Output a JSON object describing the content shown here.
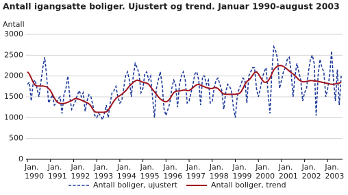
{
  "chart_data": {
    "type": "line",
    "title": "Antall igangsatte boliger. Ujustert og trend. Januar 1990-august 2003",
    "y_label": "Antall",
    "categories": [
      "Jan. 1990",
      null,
      null,
      null,
      null,
      null,
      null,
      null,
      null,
      null,
      null,
      null,
      "Jan. 1991",
      null,
      null,
      null,
      null,
      null,
      null,
      null,
      null,
      null,
      null,
      null,
      "Jan. 1992",
      null,
      null,
      null,
      null,
      null,
      null,
      null,
      null,
      null,
      null,
      null,
      "Jan. 1993",
      null,
      null,
      null,
      null,
      null,
      null,
      null,
      null,
      null,
      null,
      null,
      "Jan. 1994",
      null,
      null,
      null,
      null,
      null,
      null,
      null,
      null,
      null,
      null,
      null,
      "Jan. 1995",
      null,
      null,
      null,
      null,
      null,
      null,
      null,
      null,
      null,
      null,
      null,
      "Jan. 1996",
      null,
      null,
      null,
      null,
      null,
      null,
      null,
      null,
      null,
      null,
      null,
      "Jan. 1997",
      null,
      null,
      null,
      null,
      null,
      null,
      null,
      null,
      null,
      null,
      null,
      "Jan. 1998",
      null,
      null,
      null,
      null,
      null,
      null,
      null,
      null,
      null,
      null,
      null,
      "Jan. 1999",
      null,
      null,
      null,
      null,
      null,
      null,
      null,
      null,
      null,
      null,
      null,
      "Jan. 2000",
      null,
      null,
      null,
      null,
      null,
      null,
      null,
      null,
      null,
      null,
      null,
      "Jan. 2001",
      null,
      null,
      null,
      null,
      null,
      null,
      null,
      null,
      null,
      null,
      null,
      "Jan. 2002",
      null,
      null,
      null,
      null,
      null,
      null,
      null,
      null,
      null,
      null,
      null,
      "Jan. 2003",
      null,
      null,
      null,
      null,
      null,
      null,
      null
    ],
    "series": [
      {
        "name": "Antall boliger, ujustert",
        "color": "#1f3b9b",
        "dash": true,
        "values": [
          1800,
          1850,
          1400,
          1850,
          1900,
          1700,
          1500,
          1850,
          2200,
          2450,
          2000,
          1350,
          1450,
          1550,
          1300,
          1350,
          1450,
          1500,
          1100,
          1550,
          1700,
          2000,
          1500,
          1200,
          1300,
          1400,
          1550,
          1650,
          1500,
          1600,
          1150,
          1400,
          1550,
          1500,
          1300,
          1050,
          1000,
          1100,
          1050,
          950,
          1100,
          1300,
          1000,
          1350,
          1600,
          1650,
          1750,
          1500,
          1350,
          1400,
          1700,
          2000,
          2100,
          1900,
          1500,
          2000,
          2300,
          2200,
          2050,
          1600,
          1700,
          2050,
          2100,
          1900,
          2000,
          1500,
          1000,
          1700,
          1900,
          2100,
          1800,
          1200,
          1050,
          1200,
          1350,
          1700,
          1900,
          1800,
          1250,
          1800,
          2000,
          2100,
          1900,
          1350,
          1400,
          1600,
          1800,
          2050,
          2100,
          1900,
          1300,
          2000,
          2000,
          1800,
          1900,
          1350,
          1400,
          1700,
          1900,
          1950,
          1800,
          1650,
          1200,
          1600,
          1800,
          1750,
          1650,
          1250,
          1000,
          1500,
          1700,
          1800,
          1950,
          1900,
          1350,
          2000,
          2100,
          2200,
          2200,
          1700,
          1500,
          1700,
          1950,
          2100,
          2200,
          1600,
          1100,
          2100,
          2700,
          2600,
          2400,
          1700,
          1900,
          2100,
          2200,
          2400,
          2450,
          2100,
          1500,
          2000,
          2300,
          2100,
          1900,
          1400,
          1600,
          1700,
          2100,
          2400,
          2500,
          2300,
          1050,
          2000,
          2400,
          2200,
          2100,
          1500,
          1700,
          2000,
          2600,
          1900,
          1400,
          2150,
          1300,
          2000
        ]
      },
      {
        "name": "Antall boliger, trend",
        "color": "#a0141e",
        "dash": false,
        "values": [
          2100,
          2050,
          1950,
          1850,
          1780,
          1760,
          1760,
          1760,
          1760,
          1750,
          1740,
          1700,
          1650,
          1560,
          1470,
          1400,
          1360,
          1340,
          1340,
          1340,
          1350,
          1370,
          1390,
          1410,
          1440,
          1460,
          1450,
          1440,
          1420,
          1400,
          1380,
          1360,
          1330,
          1280,
          1200,
          1140,
          1130,
          1130,
          1130,
          1130,
          1130,
          1140,
          1180,
          1250,
          1330,
          1400,
          1460,
          1500,
          1530,
          1560,
          1600,
          1640,
          1700,
          1760,
          1800,
          1850,
          1880,
          1900,
          1890,
          1870,
          1850,
          1840,
          1830,
          1800,
          1740,
          1680,
          1620,
          1560,
          1500,
          1450,
          1420,
          1390,
          1380,
          1400,
          1450,
          1530,
          1600,
          1630,
          1640,
          1640,
          1650,
          1660,
          1660,
          1650,
          1650,
          1680,
          1720,
          1760,
          1790,
          1800,
          1780,
          1760,
          1740,
          1720,
          1710,
          1700,
          1700,
          1720,
          1720,
          1700,
          1650,
          1600,
          1570,
          1560,
          1560,
          1560,
          1560,
          1560,
          1560,
          1570,
          1580,
          1620,
          1700,
          1800,
          1870,
          1900,
          1950,
          2020,
          2080,
          2100,
          2050,
          1970,
          1900,
          1850,
          1850,
          1880,
          1950,
          2050,
          2150,
          2200,
          2240,
          2250,
          2250,
          2230,
          2200,
          2160,
          2120,
          2080,
          2050,
          2010,
          1960,
          1910,
          1880,
          1860,
          1860,
          1870,
          1880,
          1890,
          1890,
          1880,
          1880,
          1870,
          1860,
          1850,
          1840,
          1830,
          1820,
          1810,
          1800,
          1800,
          1810,
          1820,
          1830,
          1850
        ]
      }
    ],
    "ylim": [
      0,
      3000
    ],
    "yticks": [
      0,
      500,
      1000,
      1500,
      2000,
      2500,
      3000
    ],
    "grid": true
  }
}
